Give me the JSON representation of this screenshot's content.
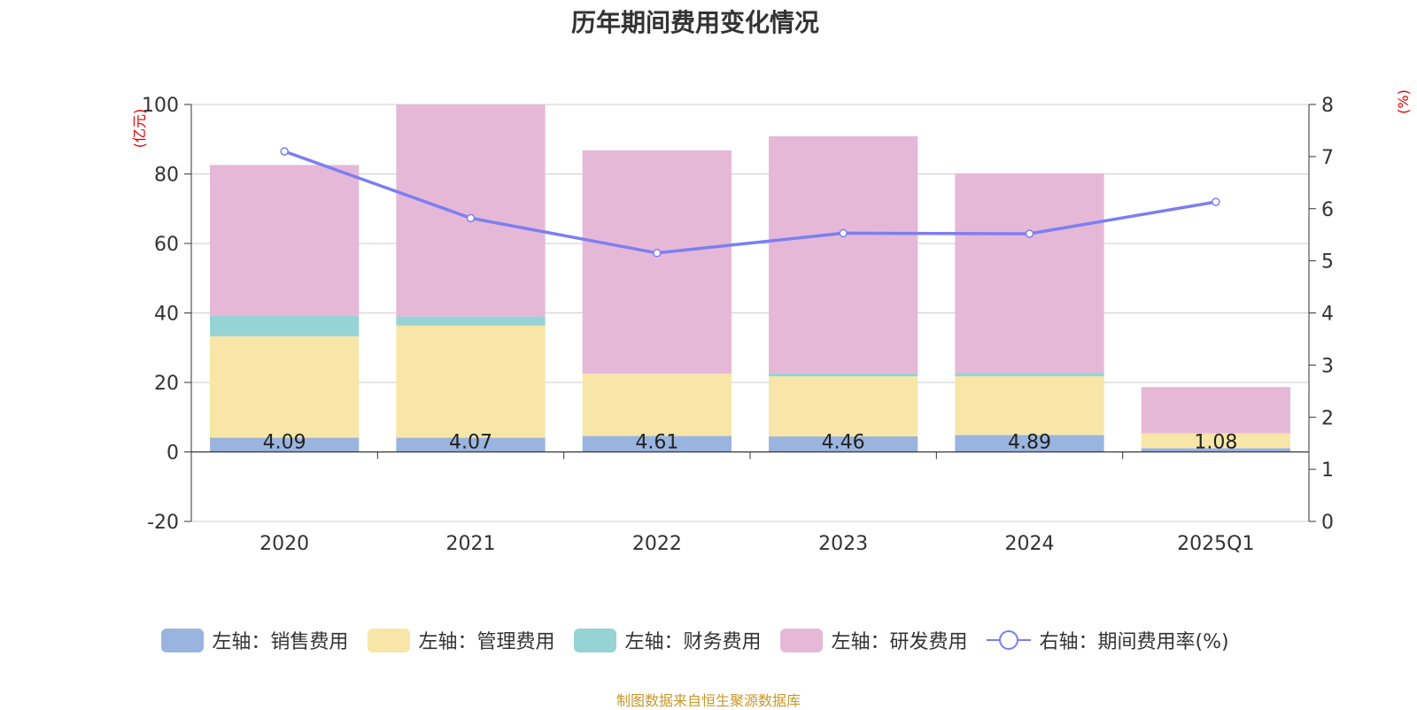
{
  "title": "历年期间费用变化情况",
  "source_note": "制图数据来自恒生聚源数据库",
  "colors": {
    "sales": "#9ab4e0",
    "admin": "#f7e6a8",
    "finance": "#96d3d5",
    "rd": "#e6b8d8",
    "ratio": "#7b7ff0",
    "axis_unit": "#e00000",
    "source": "#c8972b"
  },
  "chart_data": {
    "type": "bar",
    "stacked": true,
    "categories": [
      "2020",
      "2021",
      "2022",
      "2023",
      "2024",
      "2025Q1"
    ],
    "left_axis": {
      "unit_label": "(亿元)",
      "ylim": [
        -20,
        100
      ],
      "ticks": [
        -20,
        0,
        20,
        40,
        60,
        80,
        100
      ]
    },
    "right_axis": {
      "unit_label": "(%)",
      "ylim": [
        0,
        8
      ],
      "ticks": [
        0,
        1,
        2,
        3,
        4,
        5,
        6,
        7,
        8
      ]
    },
    "grid": true,
    "legend_position": "bottom",
    "series": [
      {
        "name": "左轴：销售费用",
        "key": "sales",
        "axis": "left",
        "type": "bar",
        "values": [
          4.09,
          4.07,
          4.61,
          4.46,
          4.89,
          1.08
        ],
        "labels": [
          "4.09",
          "4.07",
          "4.61",
          "4.46",
          "4.89",
          "1.08"
        ]
      },
      {
        "name": "左轴：管理费用",
        "key": "admin",
        "axis": "left",
        "type": "bar",
        "values": [
          29.2,
          32.3,
          17.9,
          17.3,
          16.9,
          4.3
        ]
      },
      {
        "name": "左轴：财务费用",
        "key": "finance",
        "axis": "left",
        "type": "bar",
        "values": [
          6.0,
          2.6,
          0.0,
          0.8,
          1.0,
          0.0
        ]
      },
      {
        "name": "左轴：研发费用",
        "key": "rd",
        "axis": "left",
        "type": "bar",
        "values": [
          43.3,
          61.0,
          64.3,
          68.3,
          57.4,
          13.3
        ]
      },
      {
        "name": "右轴：期间费用率(%)",
        "key": "ratio",
        "axis": "right",
        "type": "line",
        "values": [
          7.1,
          5.82,
          5.15,
          5.53,
          5.52,
          6.13
        ]
      }
    ]
  }
}
